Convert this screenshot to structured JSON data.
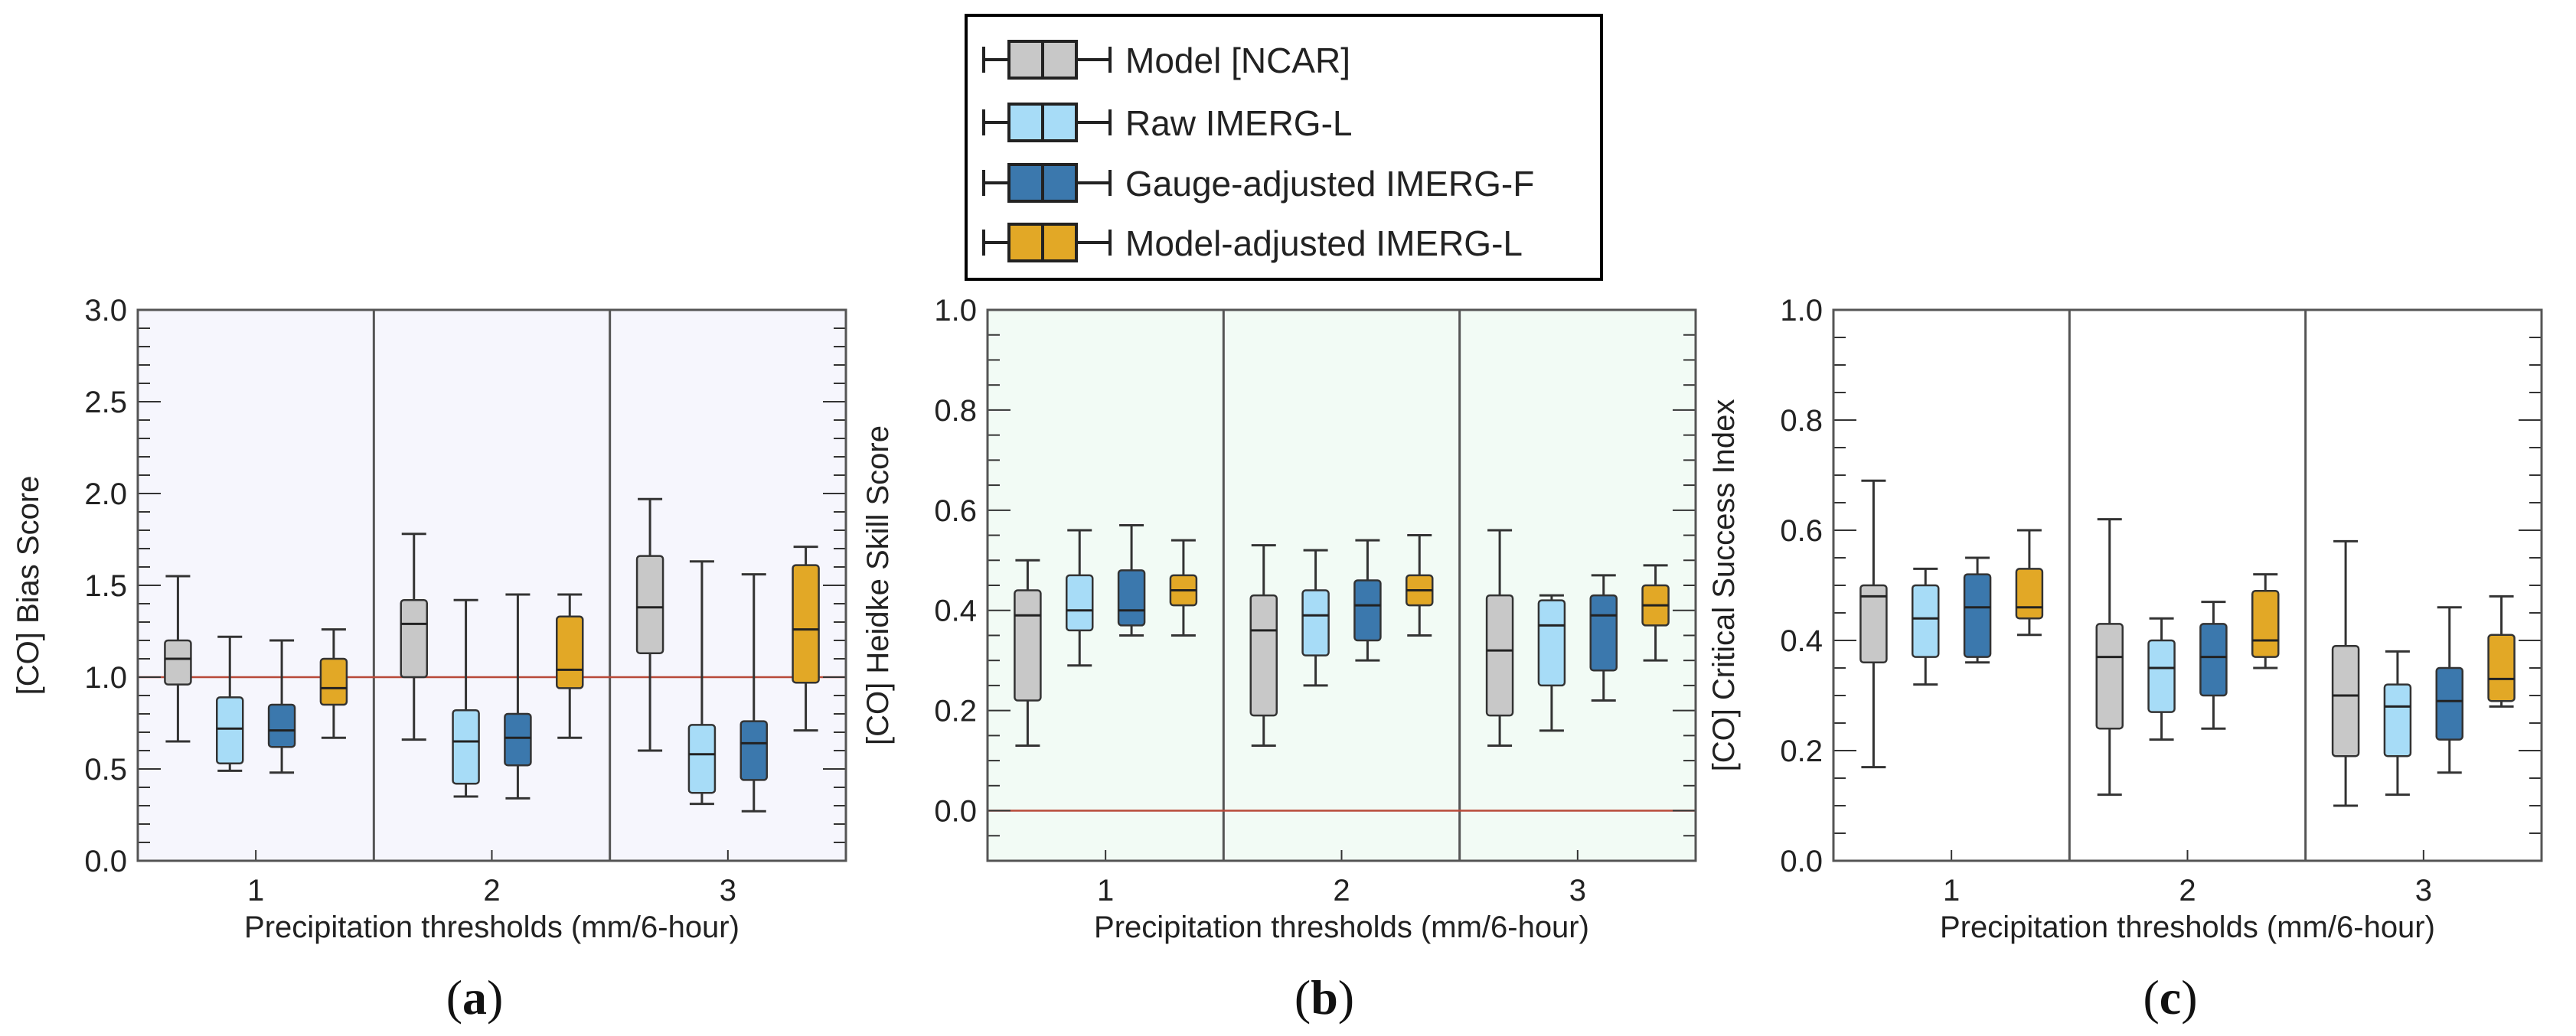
{
  "legend": {
    "entries": [
      {
        "label": "Model [NCAR]",
        "color": "#c8c8c8"
      },
      {
        "label": "Raw IMERG-L",
        "color": "#a7dcf7"
      },
      {
        "label": "Gauge-adjusted IMERG-F",
        "color": "#3b78ad"
      },
      {
        "label": "Model-adjusted IMERG-L",
        "color": "#e2a826"
      }
    ]
  },
  "chart_data": [
    {
      "type": "boxplot",
      "panel_label": "(a)",
      "panel_letter": "a",
      "ylabel": "[CO]   Bias Score",
      "xlabel": "Precipitation thresholds (mm/6-hour)",
      "ylim": [
        0.0,
        3.0
      ],
      "yticks": [
        "0.0",
        "0.5",
        "1.0",
        "1.5",
        "2.0",
        "2.5",
        "3.0"
      ],
      "ytick_values": [
        0.0,
        0.5,
        1.0,
        1.5,
        2.0,
        2.5,
        3.0
      ],
      "minor_step": 0.1,
      "background": "#f6f6fd",
      "reference_line": 1.0,
      "categories": [
        "1",
        "2",
        "3"
      ],
      "series": [
        {
          "name": "Model [NCAR]",
          "boxes": [
            {
              "whislo": 0.65,
              "q1": 0.96,
              "med": 1.1,
              "q3": 1.2,
              "whishi": 1.55
            },
            {
              "whislo": 0.66,
              "q1": 1.0,
              "med": 1.29,
              "q3": 1.42,
              "whishi": 1.78
            },
            {
              "whislo": 0.6,
              "q1": 1.13,
              "med": 1.38,
              "q3": 1.66,
              "whishi": 1.97
            }
          ]
        },
        {
          "name": "Raw IMERG-L",
          "boxes": [
            {
              "whislo": 0.49,
              "q1": 0.53,
              "med": 0.72,
              "q3": 0.89,
              "whishi": 1.22
            },
            {
              "whislo": 0.35,
              "q1": 0.42,
              "med": 0.65,
              "q3": 0.82,
              "whishi": 1.42
            },
            {
              "whislo": 0.31,
              "q1": 0.37,
              "med": 0.58,
              "q3": 0.74,
              "whishi": 1.63
            }
          ]
        },
        {
          "name": "Gauge-adjusted IMERG-F",
          "boxes": [
            {
              "whislo": 0.48,
              "q1": 0.62,
              "med": 0.71,
              "q3": 0.85,
              "whishi": 1.2
            },
            {
              "whislo": 0.34,
              "q1": 0.52,
              "med": 0.67,
              "q3": 0.8,
              "whishi": 1.45
            },
            {
              "whislo": 0.27,
              "q1": 0.44,
              "med": 0.64,
              "q3": 0.76,
              "whishi": 1.56
            }
          ]
        },
        {
          "name": "Model-adjusted IMERG-L",
          "boxes": [
            {
              "whislo": 0.67,
              "q1": 0.85,
              "med": 0.94,
              "q3": 1.1,
              "whishi": 1.26
            },
            {
              "whislo": 0.67,
              "q1": 0.94,
              "med": 1.04,
              "q3": 1.33,
              "whishi": 1.45
            },
            {
              "whislo": 0.71,
              "q1": 0.97,
              "med": 1.26,
              "q3": 1.61,
              "whishi": 1.71
            }
          ]
        }
      ]
    },
    {
      "type": "boxplot",
      "panel_label": "(b)",
      "panel_letter": "b",
      "ylabel": "[CO]   Heidke Skill Score",
      "xlabel": "Precipitation thresholds (mm/6-hour)",
      "ylim": [
        -0.1,
        1.0
      ],
      "yticks": [
        "0.0",
        "0.2",
        "0.4",
        "0.6",
        "0.8",
        "1.0"
      ],
      "ytick_values": [
        0.0,
        0.2,
        0.4,
        0.6,
        0.8,
        1.0
      ],
      "minor_step": 0.05,
      "background": "#f2fbf5",
      "reference_line": 0.0,
      "categories": [
        "1",
        "2",
        "3"
      ],
      "series": [
        {
          "name": "Model [NCAR]",
          "boxes": [
            {
              "whislo": 0.13,
              "q1": 0.22,
              "med": 0.39,
              "q3": 0.44,
              "whishi": 0.5
            },
            {
              "whislo": 0.13,
              "q1": 0.19,
              "med": 0.36,
              "q3": 0.43,
              "whishi": 0.53
            },
            {
              "whislo": 0.13,
              "q1": 0.19,
              "med": 0.32,
              "q3": 0.43,
              "whishi": 0.56
            }
          ]
        },
        {
          "name": "Raw IMERG-L",
          "boxes": [
            {
              "whislo": 0.29,
              "q1": 0.36,
              "med": 0.4,
              "q3": 0.47,
              "whishi": 0.56
            },
            {
              "whislo": 0.25,
              "q1": 0.31,
              "med": 0.39,
              "q3": 0.44,
              "whishi": 0.52
            },
            {
              "whislo": 0.16,
              "q1": 0.25,
              "med": 0.37,
              "q3": 0.42,
              "whishi": 0.43
            }
          ]
        },
        {
          "name": "Gauge-adjusted IMERG-F",
          "boxes": [
            {
              "whislo": 0.35,
              "q1": 0.37,
              "med": 0.4,
              "q3": 0.48,
              "whishi": 0.57
            },
            {
              "whislo": 0.3,
              "q1": 0.34,
              "med": 0.41,
              "q3": 0.46,
              "whishi": 0.54
            },
            {
              "whislo": 0.22,
              "q1": 0.28,
              "med": 0.39,
              "q3": 0.43,
              "whishi": 0.47
            }
          ]
        },
        {
          "name": "Model-adjusted IMERG-L",
          "boxes": [
            {
              "whislo": 0.35,
              "q1": 0.41,
              "med": 0.44,
              "q3": 0.47,
              "whishi": 0.54
            },
            {
              "whislo": 0.35,
              "q1": 0.41,
              "med": 0.44,
              "q3": 0.47,
              "whishi": 0.55
            },
            {
              "whislo": 0.3,
              "q1": 0.37,
              "med": 0.41,
              "q3": 0.45,
              "whishi": 0.49
            }
          ]
        }
      ]
    },
    {
      "type": "boxplot",
      "panel_label": "(c)",
      "panel_letter": "c",
      "ylabel": "[CO]   Critical Success Index",
      "xlabel": "Precipitation thresholds (mm/6-hour)",
      "ylim": [
        0.0,
        1.0
      ],
      "yticks": [
        "0.0",
        "0.2",
        "0.4",
        "0.6",
        "0.8",
        "1.0"
      ],
      "ytick_values": [
        0.0,
        0.2,
        0.4,
        0.6,
        0.8,
        1.0
      ],
      "minor_step": 0.05,
      "background": "#ffffff",
      "reference_line": null,
      "categories": [
        "1",
        "2",
        "3"
      ],
      "series": [
        {
          "name": "Model [NCAR]",
          "boxes": [
            {
              "whislo": 0.17,
              "q1": 0.36,
              "med": 0.48,
              "q3": 0.5,
              "whishi": 0.69
            },
            {
              "whislo": 0.12,
              "q1": 0.24,
              "med": 0.37,
              "q3": 0.43,
              "whishi": 0.62
            },
            {
              "whislo": 0.1,
              "q1": 0.19,
              "med": 0.3,
              "q3": 0.39,
              "whishi": 0.58
            }
          ]
        },
        {
          "name": "Raw IMERG-L",
          "boxes": [
            {
              "whislo": 0.32,
              "q1": 0.37,
              "med": 0.44,
              "q3": 0.5,
              "whishi": 0.53
            },
            {
              "whislo": 0.22,
              "q1": 0.27,
              "med": 0.35,
              "q3": 0.4,
              "whishi": 0.44
            },
            {
              "whislo": 0.12,
              "q1": 0.19,
              "med": 0.28,
              "q3": 0.32,
              "whishi": 0.38
            }
          ]
        },
        {
          "name": "Gauge-adjusted IMERG-F",
          "boxes": [
            {
              "whislo": 0.36,
              "q1": 0.37,
              "med": 0.46,
              "q3": 0.52,
              "whishi": 0.55
            },
            {
              "whislo": 0.24,
              "q1": 0.3,
              "med": 0.37,
              "q3": 0.43,
              "whishi": 0.47
            },
            {
              "whislo": 0.16,
              "q1": 0.22,
              "med": 0.29,
              "q3": 0.35,
              "whishi": 0.46
            }
          ]
        },
        {
          "name": "Model-adjusted IMERG-L",
          "boxes": [
            {
              "whislo": 0.41,
              "q1": 0.44,
              "med": 0.46,
              "q3": 0.53,
              "whishi": 0.6
            },
            {
              "whislo": 0.35,
              "q1": 0.37,
              "med": 0.4,
              "q3": 0.49,
              "whishi": 0.52
            },
            {
              "whislo": 0.28,
              "q1": 0.29,
              "med": 0.33,
              "q3": 0.41,
              "whishi": 0.48
            }
          ]
        }
      ]
    }
  ]
}
